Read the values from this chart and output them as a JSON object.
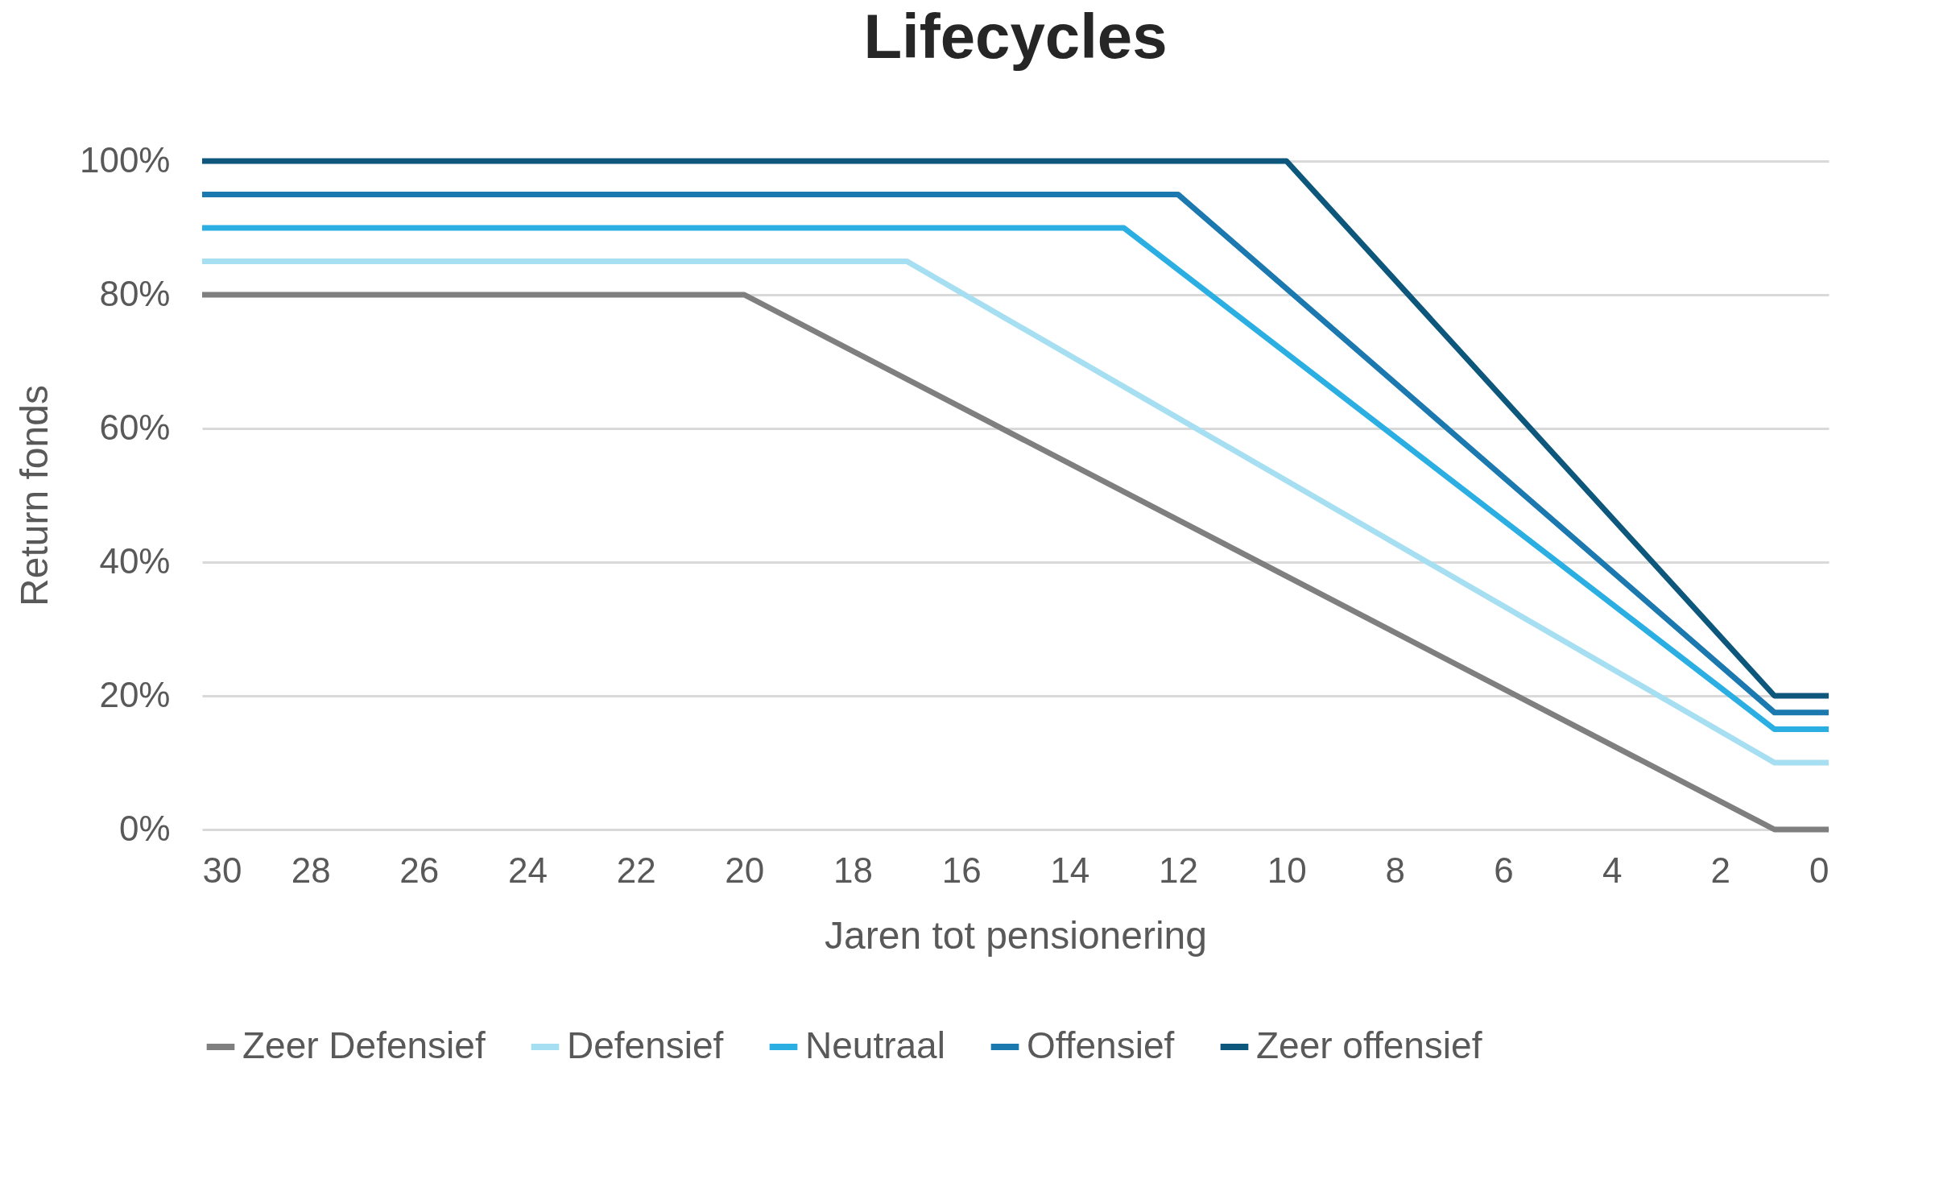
{
  "chart_data": {
    "type": "line",
    "title": "Lifecycles",
    "xlabel": "Jaren tot pensionering",
    "ylabel": "Return fonds",
    "xlim": [
      30,
      0
    ],
    "xticks": [
      30,
      28,
      26,
      24,
      22,
      20,
      18,
      16,
      14,
      12,
      10,
      8,
      6,
      4,
      2,
      0
    ],
    "ylim": [
      0,
      100
    ],
    "yticks": [
      {
        "value": 0,
        "label": "0%"
      },
      {
        "value": 20,
        "label": "20%"
      },
      {
        "value": 40,
        "label": "40%"
      },
      {
        "value": 60,
        "label": "60%"
      },
      {
        "value": 80,
        "label": "80%"
      },
      {
        "value": 100,
        "label": "100%"
      }
    ],
    "grid": "y",
    "legend": "bottom",
    "marker": "none",
    "line_style": "solid",
    "series": [
      {
        "name": "Zeer Defensief",
        "color": "#7f7f7f",
        "x": [
          30,
          20,
          1,
          0
        ],
        "values": [
          80,
          80,
          0,
          0
        ]
      },
      {
        "name": "Defensief",
        "color": "#a6dff2",
        "x": [
          30,
          17,
          1,
          0
        ],
        "values": [
          85,
          85,
          10,
          10
        ]
      },
      {
        "name": "Neutraal",
        "color": "#2bafe3",
        "x": [
          30,
          13,
          1,
          0
        ],
        "values": [
          90,
          90,
          15,
          15
        ]
      },
      {
        "name": "Offensief",
        "color": "#1b79b0",
        "x": [
          30,
          12,
          1,
          0
        ],
        "values": [
          95,
          95,
          17.5,
          17.5
        ]
      },
      {
        "name": "Zeer offensief",
        "color": "#0e577c",
        "x": [
          30,
          10,
          1,
          0
        ],
        "values": [
          100,
          100,
          20,
          20
        ]
      }
    ]
  }
}
